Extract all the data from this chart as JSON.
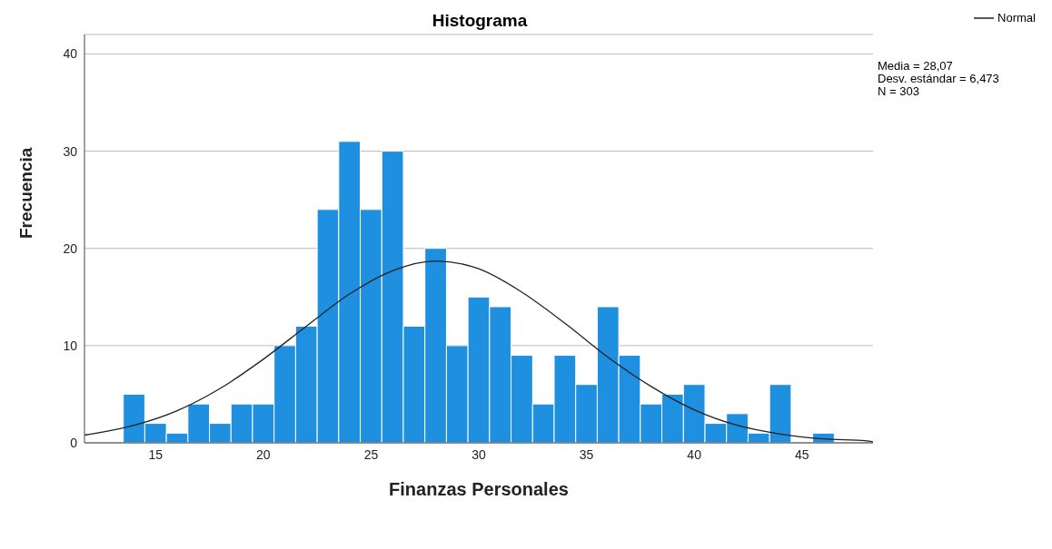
{
  "chart_data": {
    "type": "histogram",
    "title": "Histograma",
    "xlabel": "Finanzas Personales",
    "ylabel": "Frecuencia",
    "bins": [
      13.5,
      14.5,
      15.5,
      16.5,
      17.5,
      18.5,
      19.5,
      20.5,
      21.5,
      22.5,
      23.5,
      24.5,
      25.5,
      26.5,
      27.5,
      28.5,
      29.5,
      30.5,
      31.5,
      32.5,
      33.5,
      34.5,
      35.5,
      36.5,
      37.5,
      38.5,
      39.5,
      40.5,
      41.5,
      42.5,
      43.5,
      44.5,
      45.5,
      46.5
    ],
    "values": [
      5,
      2,
      1,
      4,
      2,
      4,
      4,
      10,
      12,
      24,
      31,
      24,
      30,
      12,
      20,
      10,
      15,
      14,
      9,
      4,
      9,
      6,
      14,
      9,
      4,
      5,
      6,
      2,
      3,
      1,
      6,
      0,
      1
    ],
    "color": "#1f8fe0",
    "series": [
      {
        "type": "line",
        "name": "Normal",
        "color": "#222222",
        "x": [
          11.7,
          12,
          14,
          16,
          18,
          20,
          22,
          24,
          26,
          28,
          30,
          32,
          34,
          36,
          38,
          40,
          42,
          44,
          46,
          48,
          48.3
        ],
        "values": [
          0.8,
          0.9,
          1.8,
          3.3,
          5.6,
          8.6,
          12,
          15.3,
          17.7,
          18.7,
          17.9,
          15.5,
          12.3,
          8.8,
          5.8,
          3.4,
          1.8,
          0.9,
          0.4,
          0.2,
          0.1
        ]
      }
    ],
    "xlim": [
      11.7,
      48.3
    ],
    "xticks": [
      15,
      20,
      25,
      30,
      35,
      40,
      45
    ],
    "ylim": [
      0,
      42
    ],
    "yticks": [
      0,
      10,
      20,
      30,
      40
    ],
    "grid": "y",
    "legend": "top right",
    "marker": "none",
    "line_style": "solid",
    "annotations": [
      "Media = 28,07",
      "Desv. estándar = 6,473",
      "N = 303"
    ]
  }
}
